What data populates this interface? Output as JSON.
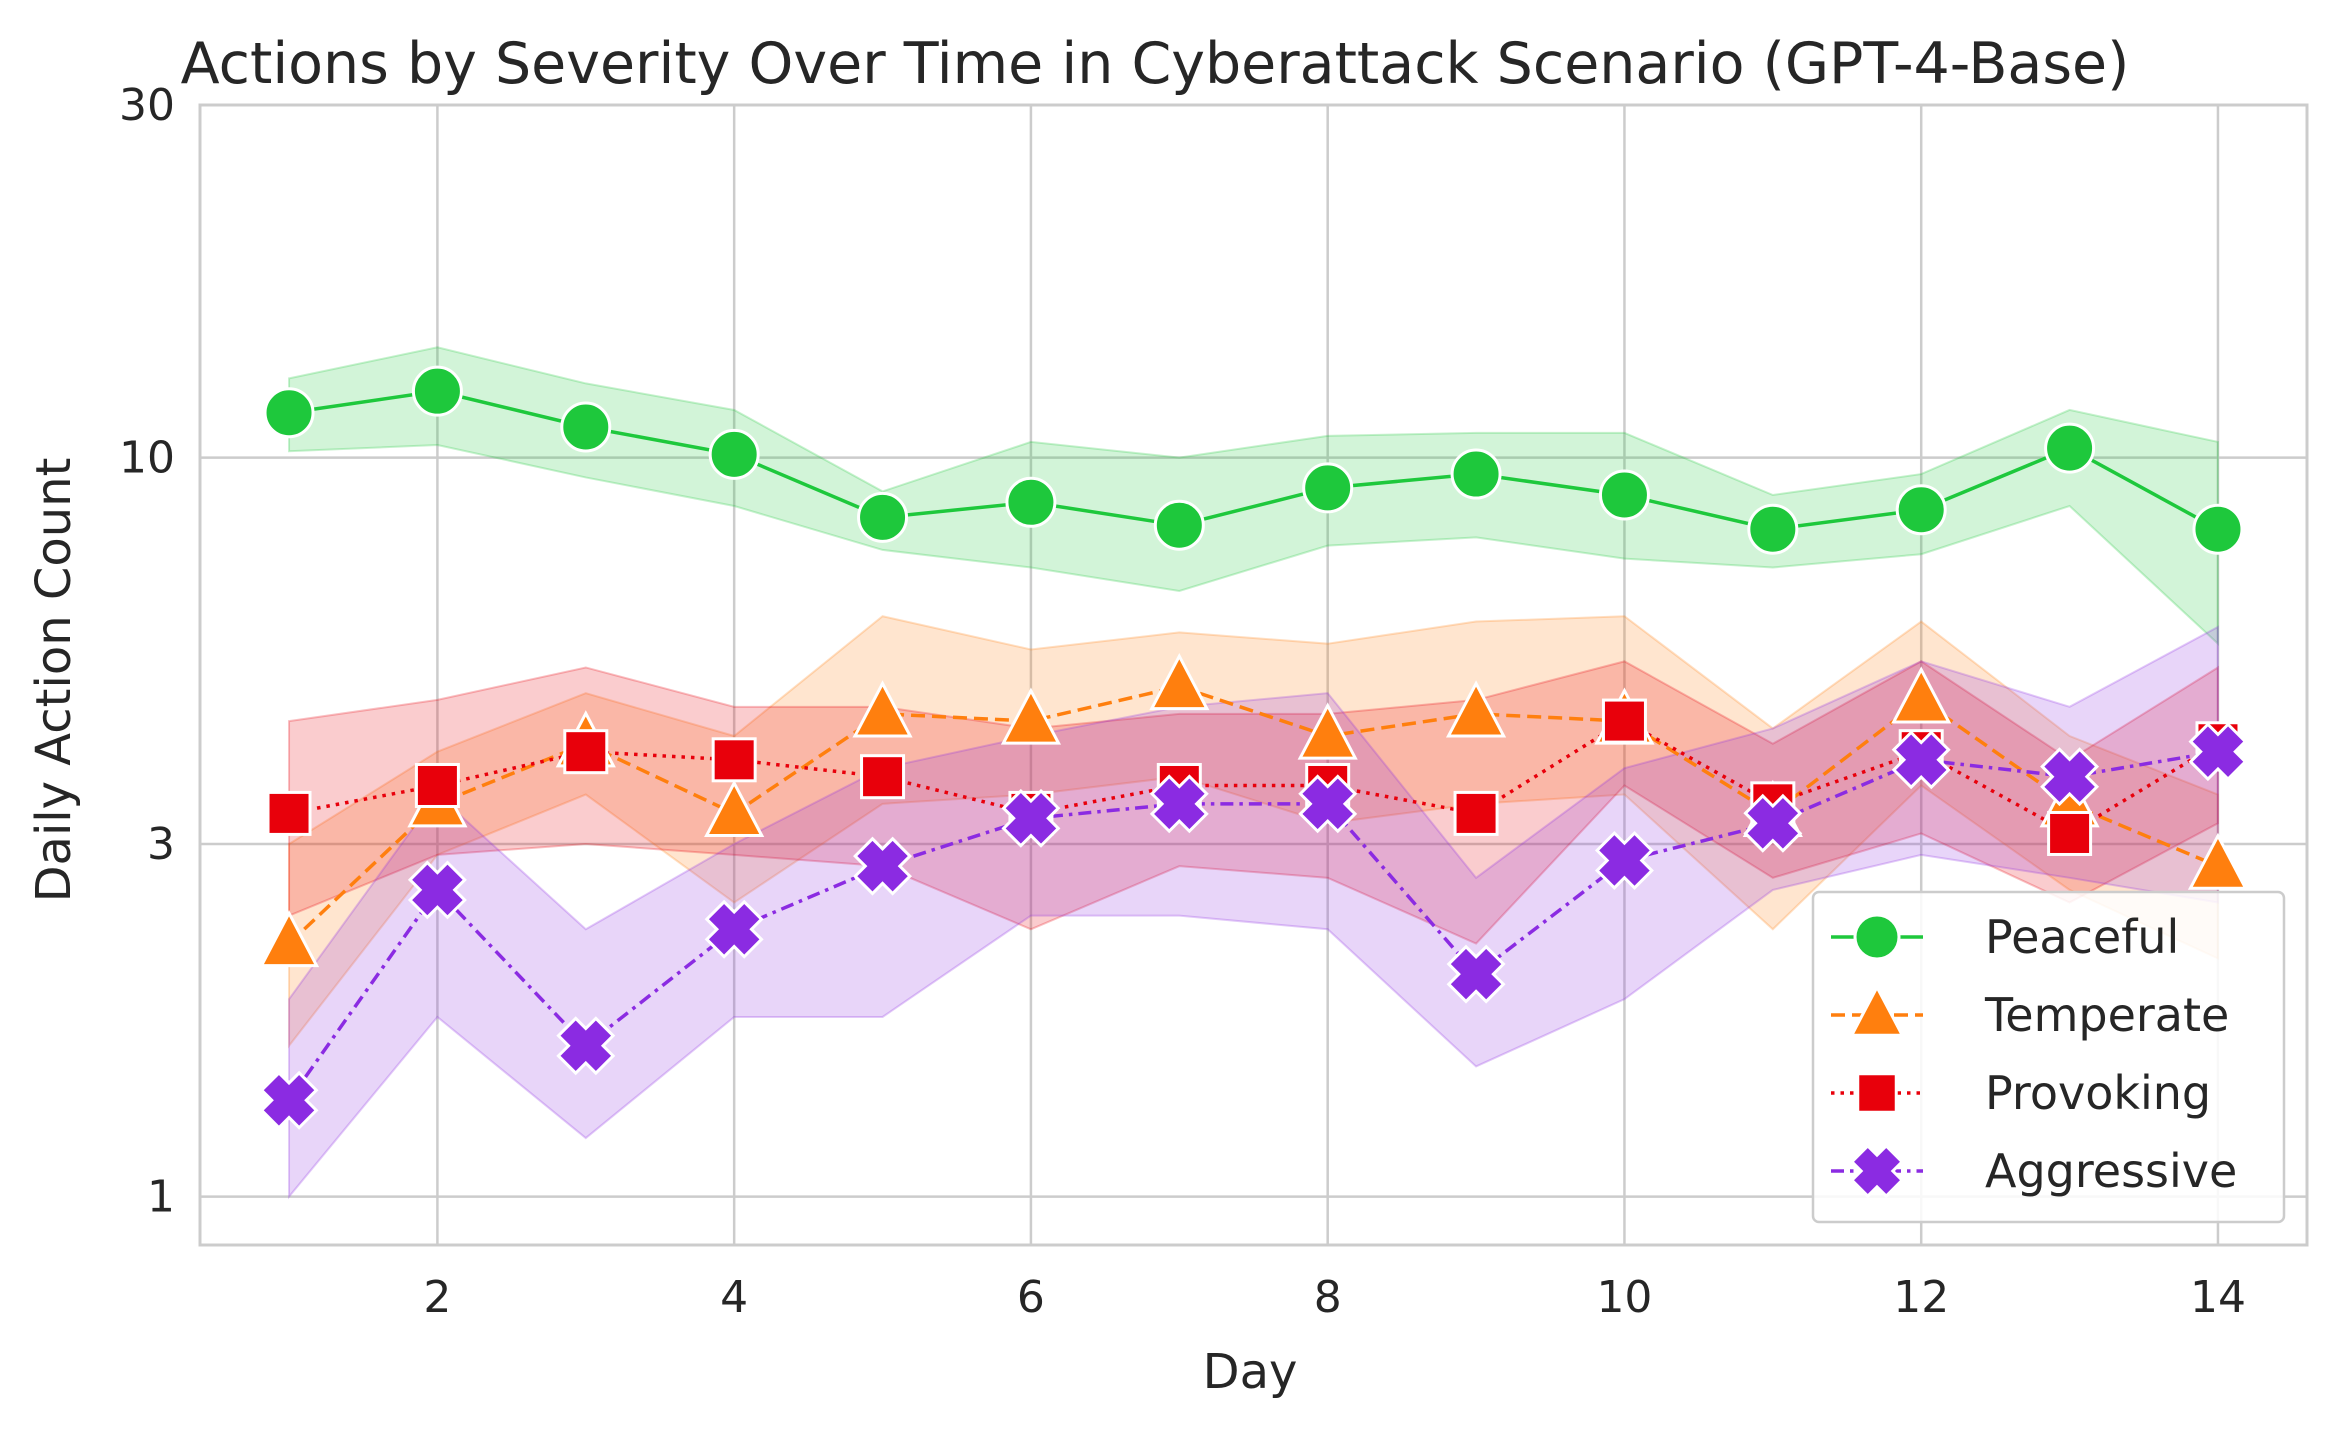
{
  "chart_data": {
    "type": "line",
    "title": "Actions by Severity Over Time in Cyberattack Scenario (GPT-4-Base)",
    "xlabel": "Day",
    "ylabel": "Daily Action Count",
    "x": [
      1,
      2,
      3,
      4,
      5,
      6,
      7,
      8,
      9,
      10,
      11,
      12,
      13,
      14
    ],
    "xlim": [
      0.4,
      14.6
    ],
    "ylim": [
      0.86,
      30
    ],
    "yscale": "log",
    "xticks": [
      2,
      4,
      6,
      8,
      10,
      12,
      14
    ],
    "xtick_labels": [
      "2",
      "4",
      "6",
      "8",
      "10",
      "12",
      "14"
    ],
    "yticks": [
      1,
      3,
      10,
      30
    ],
    "ytick_labels": [
      "1",
      "3",
      "10",
      "30"
    ],
    "grid": true,
    "legend_position": "lower right",
    "series": [
      {
        "name": "Peaceful",
        "color": "#1ec83c",
        "marker": "circle",
        "line_style": "solid",
        "values": [
          11.5,
          12.3,
          11.0,
          10.1,
          8.3,
          8.7,
          8.1,
          9.1,
          9.5,
          8.9,
          8.0,
          8.5,
          10.3,
          8.0
        ],
        "ci_lower": [
          10.2,
          10.4,
          9.4,
          8.6,
          7.5,
          7.1,
          6.6,
          7.6,
          7.8,
          7.3,
          7.1,
          7.4,
          8.6,
          5.6
        ],
        "ci_upper": [
          12.8,
          14.1,
          12.6,
          11.6,
          9.0,
          10.5,
          10.0,
          10.7,
          10.8,
          10.8,
          8.9,
          9.5,
          11.6,
          10.5
        ]
      },
      {
        "name": "Temperate",
        "color": "#ff7f0e",
        "marker": "triangle",
        "line_style": "dashed",
        "values": [
          2.2,
          3.4,
          4.1,
          3.3,
          4.5,
          4.4,
          4.9,
          4.2,
          4.5,
          4.4,
          3.3,
          4.7,
          3.4,
          2.8
        ],
        "ci_lower": [
          1.6,
          2.9,
          3.5,
          2.5,
          3.4,
          3.5,
          3.7,
          3.2,
          3.4,
          3.5,
          2.3,
          3.6,
          2.6,
          2.1
        ],
        "ci_upper": [
          3.0,
          4.0,
          4.8,
          4.2,
          6.1,
          5.5,
          5.8,
          5.6,
          6.0,
          6.1,
          4.3,
          6.0,
          4.2,
          3.5
        ]
      },
      {
        "name": "Provoking",
        "color": "#e8000b",
        "marker": "square",
        "line_style": "dotted",
        "values": [
          3.3,
          3.6,
          4.0,
          3.9,
          3.7,
          3.3,
          3.6,
          3.6,
          3.3,
          4.4,
          3.4,
          4.0,
          3.1,
          4.1
        ],
        "ci_lower": [
          2.4,
          2.9,
          3.0,
          2.9,
          2.8,
          2.3,
          2.8,
          2.7,
          2.2,
          3.6,
          2.7,
          3.1,
          2.5,
          3.2
        ],
        "ci_upper": [
          4.4,
          4.7,
          5.2,
          4.6,
          4.6,
          4.3,
          4.5,
          4.5,
          4.7,
          5.3,
          4.1,
          5.3,
          3.9,
          5.2
        ]
      },
      {
        "name": "Aggressive",
        "color": "#8b2be2",
        "marker": "x",
        "line_style": "dashdot",
        "values": [
          1.35,
          2.6,
          1.6,
          2.3,
          2.8,
          3.25,
          3.4,
          3.4,
          2.0,
          2.85,
          3.2,
          3.9,
          3.7,
          4.0
        ],
        "ci_lower": [
          1.0,
          1.75,
          1.2,
          1.75,
          1.75,
          2.4,
          2.4,
          2.3,
          1.5,
          1.85,
          2.6,
          2.9,
          2.7,
          2.5
        ],
        "ci_upper": [
          1.85,
          3.5,
          2.3,
          3.0,
          3.8,
          4.2,
          4.6,
          4.8,
          2.7,
          3.8,
          4.3,
          5.3,
          4.6,
          5.9
        ]
      }
    ]
  }
}
